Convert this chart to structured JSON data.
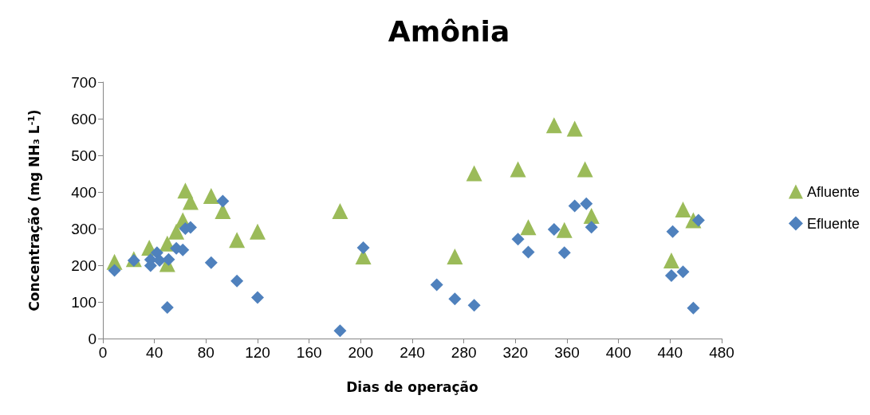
{
  "chart_data": {
    "type": "scatter",
    "title": "Amônia",
    "xlabel": "Dias de operação",
    "ylabel": "Concentração (mg NH₃ L$^{-1}$)",
    "xlim": [
      0,
      480
    ],
    "xticks": [
      0,
      40,
      80,
      120,
      160,
      200,
      240,
      280,
      320,
      360,
      400,
      440,
      480
    ],
    "ylim": [
      0,
      700
    ],
    "yticks": [
      0,
      100,
      200,
      300,
      400,
      500,
      600,
      700
    ],
    "grid": false,
    "legend": "right",
    "series": [
      {
        "name": "Afluente",
        "color": "#9bbb59",
        "marker": "triangle",
        "x": [
          9,
          24,
          36,
          50,
          50,
          57,
          62,
          64,
          68,
          84,
          93,
          104,
          120,
          184,
          202,
          273,
          288,
          322,
          330,
          350,
          366,
          358,
          374,
          379,
          450,
          441,
          458
        ],
        "values": [
          209,
          217,
          248,
          259,
          203,
          292,
          323,
          404,
          373,
          389,
          348,
          269,
          292,
          348,
          224,
          224,
          451,
          462,
          304,
          582,
          573,
          296,
          462,
          335,
          352,
          213,
          323
        ]
      },
      {
        "name": "Efluente",
        "color": "#4f81bd",
        "marker": "diamond",
        "x": [
          9,
          24,
          37,
          37,
          42,
          44,
          51,
          50,
          57,
          62,
          64,
          68,
          84,
          93,
          104,
          120,
          184,
          202,
          259,
          273,
          288,
          322,
          330,
          350,
          358,
          366,
          375,
          379,
          442,
          441,
          450,
          458,
          462
        ],
        "values": [
          186,
          213,
          215,
          199,
          234,
          213,
          216,
          85,
          246,
          242,
          300,
          303,
          207,
          375,
          157,
          112,
          21,
          248,
          147,
          108,
          91,
          271,
          236,
          298,
          234,
          362,
          368,
          304,
          292,
          172,
          182,
          83,
          323
        ]
      }
    ]
  }
}
